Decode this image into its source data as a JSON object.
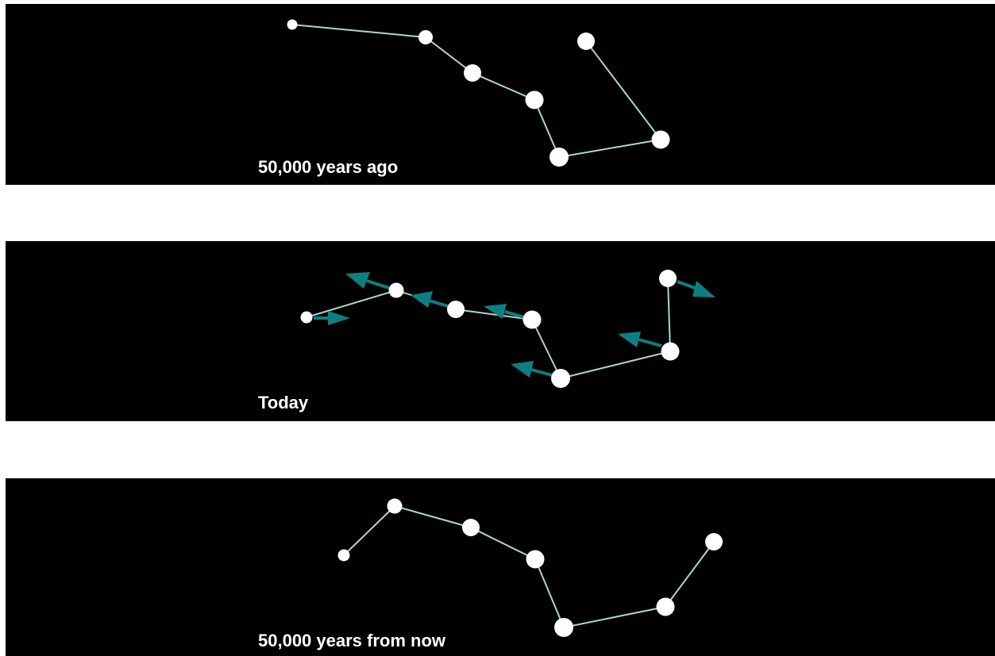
{
  "colors": {
    "background": "#000000",
    "star": "#ffffff",
    "line": "#a8d8d2",
    "arrow": "#0e7f80"
  },
  "panels": [
    {
      "id": "past",
      "label": "50,000 years ago"
    },
    {
      "id": "today",
      "label": "Today"
    },
    {
      "id": "future",
      "label": "50,000 years from now"
    }
  ]
}
